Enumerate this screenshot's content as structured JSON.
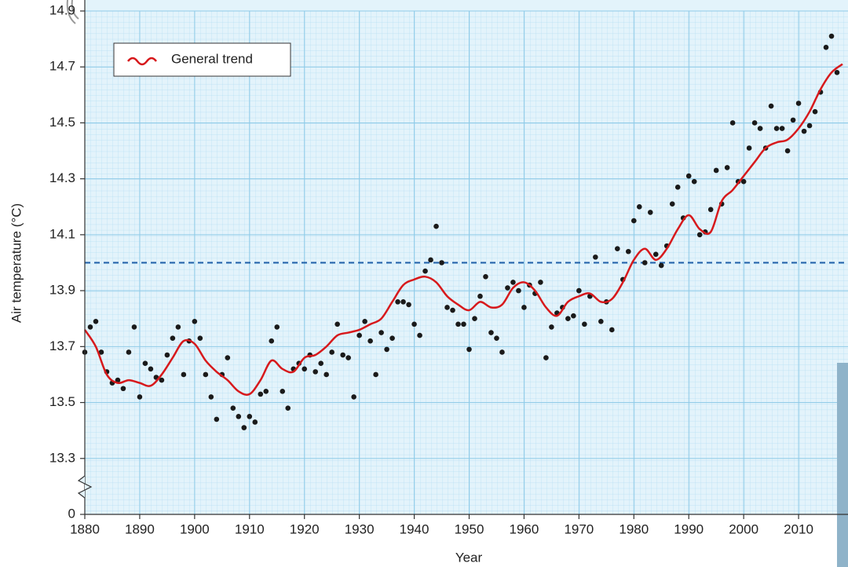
{
  "chart_data": {
    "type": "scatter",
    "x_label": "Year",
    "y_label": "Air temperature (°C)",
    "xlim": [
      1880,
      2019
    ],
    "xticks": [
      1880,
      1890,
      1900,
      1910,
      1920,
      1930,
      1940,
      1950,
      1960,
      1970,
      1980,
      1990,
      2000,
      2010
    ],
    "ylim": [
      0,
      14.9
    ],
    "yticks": [
      0,
      13.3,
      13.5,
      13.7,
      13.9,
      14.1,
      14.3,
      14.5,
      14.7,
      14.9
    ],
    "y_axis_break": true,
    "grid": true,
    "reference_line": {
      "value": 14.0,
      "color": "#1f5fa8",
      "style": "dashed"
    },
    "legend": "upper left",
    "series": [
      {
        "name": "General trend",
        "type": "line",
        "color": "#d7191c",
        "x": [
          1880,
          1882,
          1884,
          1886,
          1888,
          1890,
          1892,
          1894,
          1896,
          1898,
          1900,
          1902,
          1904,
          1906,
          1908,
          1910,
          1912,
          1914,
          1916,
          1918,
          1920,
          1922,
          1924,
          1926,
          1928,
          1930,
          1932,
          1934,
          1936,
          1938,
          1940,
          1942,
          1944,
          1946,
          1948,
          1950,
          1952,
          1954,
          1956,
          1958,
          1960,
          1962,
          1964,
          1966,
          1968,
          1970,
          1972,
          1974,
          1976,
          1978,
          1980,
          1982,
          1984,
          1986,
          1988,
          1990,
          1992,
          1994,
          1996,
          1998,
          2000,
          2002,
          2004,
          2006,
          2008,
          2010,
          2012,
          2014,
          2016,
          2018
        ],
        "values": [
          13.76,
          13.7,
          13.6,
          13.57,
          13.58,
          13.57,
          13.56,
          13.6,
          13.66,
          13.72,
          13.71,
          13.65,
          13.61,
          13.58,
          13.54,
          13.53,
          13.58,
          13.65,
          13.62,
          13.61,
          13.66,
          13.67,
          13.7,
          13.74,
          13.75,
          13.76,
          13.78,
          13.8,
          13.86,
          13.92,
          13.94,
          13.95,
          13.93,
          13.88,
          13.85,
          13.83,
          13.86,
          13.84,
          13.85,
          13.91,
          13.93,
          13.9,
          13.84,
          13.81,
          13.86,
          13.88,
          13.89,
          13.86,
          13.87,
          13.93,
          14.01,
          14.05,
          14.01,
          14.05,
          14.12,
          14.17,
          14.12,
          14.11,
          14.22,
          14.26,
          14.31,
          14.36,
          14.41,
          14.43,
          14.44,
          14.48,
          14.54,
          14.62,
          14.68,
          14.71
        ]
      },
      {
        "type": "scatter",
        "color": "#1a1a1a",
        "x": [
          1880,
          1881,
          1882,
          1883,
          1884,
          1885,
          1886,
          1887,
          1888,
          1889,
          1890,
          1891,
          1892,
          1893,
          1894,
          1895,
          1896,
          1897,
          1898,
          1899,
          1900,
          1901,
          1902,
          1903,
          1904,
          1905,
          1906,
          1907,
          1908,
          1909,
          1910,
          1911,
          1912,
          1913,
          1914,
          1915,
          1916,
          1917,
          1918,
          1919,
          1920,
          1921,
          1922,
          1923,
          1924,
          1925,
          1926,
          1927,
          1928,
          1929,
          1930,
          1931,
          1932,
          1933,
          1934,
          1935,
          1936,
          1937,
          1938,
          1939,
          1940,
          1941,
          1942,
          1943,
          1944,
          1945,
          1946,
          1947,
          1948,
          1949,
          1950,
          1951,
          1952,
          1953,
          1954,
          1955,
          1956,
          1957,
          1958,
          1959,
          1960,
          1961,
          1962,
          1963,
          1964,
          1965,
          1966,
          1967,
          1968,
          1969,
          1970,
          1971,
          1972,
          1973,
          1974,
          1975,
          1976,
          1977,
          1978,
          1979,
          1980,
          1981,
          1982,
          1983,
          1984,
          1985,
          1986,
          1987,
          1988,
          1989,
          1990,
          1991,
          1992,
          1993,
          1994,
          1995,
          1996,
          1997,
          1998,
          1999,
          2000,
          2001,
          2002,
          2003,
          2004,
          2005,
          2006,
          2007,
          2008,
          2009,
          2010,
          2011,
          2012,
          2013,
          2014,
          2015,
          2016,
          2017
        ],
        "values": [
          13.68,
          13.77,
          13.79,
          13.68,
          13.61,
          13.57,
          13.58,
          13.55,
          13.68,
          13.77,
          13.52,
          13.64,
          13.62,
          13.59,
          13.58,
          13.67,
          13.73,
          13.77,
          13.6,
          13.72,
          13.79,
          13.73,
          13.6,
          13.52,
          13.44,
          13.6,
          13.66,
          13.48,
          13.45,
          13.41,
          13.45,
          13.43,
          13.53,
          13.54,
          13.72,
          13.77,
          13.54,
          13.48,
          13.62,
          13.64,
          13.62,
          13.67,
          13.61,
          13.64,
          13.6,
          13.68,
          13.78,
          13.67,
          13.66,
          13.52,
          13.74,
          13.79,
          13.72,
          13.6,
          13.75,
          13.69,
          13.73,
          13.86,
          13.86,
          13.85,
          13.78,
          13.74,
          13.97,
          14.01,
          14.13,
          14.0,
          13.84,
          13.83,
          13.78,
          13.78,
          13.69,
          13.8,
          13.88,
          13.95,
          13.75,
          13.73,
          13.68,
          13.91,
          13.93,
          13.9,
          13.84,
          13.92,
          13.89,
          13.93,
          13.66,
          13.77,
          13.82,
          13.84,
          13.8,
          13.81,
          13.9,
          13.78,
          13.88,
          14.02,
          13.79,
          13.86,
          13.76,
          14.05,
          13.94,
          14.04,
          14.15,
          14.2,
          14.0,
          14.18,
          14.03,
          13.99,
          14.06,
          14.21,
          14.27,
          14.16,
          14.31,
          14.29,
          14.1,
          14.11,
          14.19,
          14.33,
          14.21,
          14.34,
          14.5,
          14.29,
          14.29,
          14.41,
          14.5,
          14.48,
          14.41,
          14.56,
          14.48,
          14.48,
          14.4,
          14.51,
          14.57,
          14.47,
          14.49,
          14.54,
          14.61,
          14.77,
          14.81,
          14.68
        ]
      }
    ]
  }
}
